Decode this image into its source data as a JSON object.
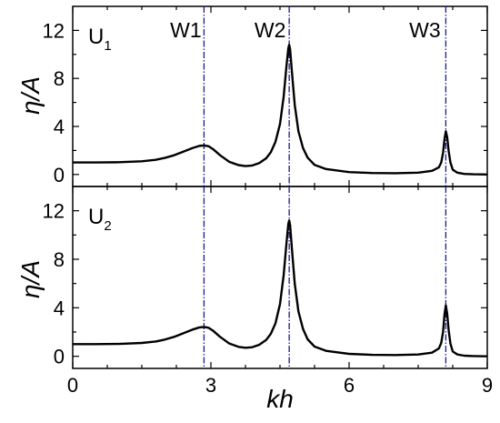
{
  "chart_data": {
    "type": "line",
    "xlabel": "kh",
    "ylabel": "η/A",
    "xlim": [
      0,
      9
    ],
    "ylim": [
      -1,
      14
    ],
    "x_ticks": [
      "0",
      "3",
      "6",
      "9"
    ],
    "y_ticks": [
      "0",
      "4",
      "8",
      "12"
    ],
    "vlines": [
      {
        "label": "W1",
        "x": 2.85
      },
      {
        "label": "W2",
        "x": 4.7
      },
      {
        "label": "W3",
        "x": 8.1
      }
    ],
    "line_color": "#000000",
    "vline_color": "#1a1a8c",
    "panels": [
      {
        "label": "U",
        "label_sub": "1",
        "series": [
          {
            "x": [
              0,
              0.5,
              1.0,
              1.5,
              1.8,
              2.0,
              2.2,
              2.4,
              2.6,
              2.75,
              2.85,
              2.95,
              3.05,
              3.2,
              3.4,
              3.6,
              3.75,
              3.9,
              4.05,
              4.2,
              4.3,
              4.4,
              4.5,
              4.58,
              4.64,
              4.68,
              4.7,
              4.72,
              4.76,
              4.82,
              4.9,
              5.0,
              5.1,
              5.25,
              5.5,
              6.0,
              6.5,
              7.0,
              7.5,
              7.8,
              7.95,
              8.0,
              8.04,
              8.07,
              8.1,
              8.13,
              8.16,
              8.2,
              8.25,
              8.35,
              8.5,
              8.7,
              9.0
            ],
            "y": [
              1.0,
              1.0,
              1.02,
              1.1,
              1.22,
              1.38,
              1.6,
              1.9,
              2.2,
              2.38,
              2.42,
              2.35,
              2.1,
              1.6,
              1.05,
              0.78,
              0.7,
              0.75,
              0.95,
              1.35,
              1.85,
              2.7,
              4.2,
              6.5,
              9.0,
              10.5,
              10.8,
              10.4,
              8.5,
              5.8,
              3.6,
              2.2,
              1.4,
              0.8,
              0.45,
              0.2,
              0.12,
              0.1,
              0.15,
              0.3,
              0.6,
              1.0,
              1.8,
              2.9,
              3.6,
              3.1,
              2.0,
              1.0,
              0.4,
              0.15,
              0.05,
              0.02,
              0.0
            ]
          }
        ]
      },
      {
        "label": "U",
        "label_sub": "2",
        "series": [
          {
            "x": [
              0,
              0.5,
              1.0,
              1.5,
              1.8,
              2.0,
              2.2,
              2.4,
              2.6,
              2.75,
              2.85,
              2.95,
              3.05,
              3.2,
              3.4,
              3.6,
              3.75,
              3.9,
              4.05,
              4.2,
              4.3,
              4.4,
              4.5,
              4.58,
              4.64,
              4.68,
              4.7,
              4.72,
              4.76,
              4.82,
              4.9,
              5.0,
              5.1,
              5.25,
              5.5,
              6.0,
              6.5,
              7.0,
              7.5,
              7.8,
              7.95,
              8.0,
              8.04,
              8.07,
              8.1,
              8.13,
              8.16,
              8.2,
              8.25,
              8.35,
              8.5,
              8.7,
              9.0
            ],
            "y": [
              1.0,
              1.0,
              1.02,
              1.1,
              1.22,
              1.38,
              1.6,
              1.9,
              2.2,
              2.38,
              2.42,
              2.35,
              2.1,
              1.6,
              1.05,
              0.78,
              0.7,
              0.75,
              0.95,
              1.35,
              1.85,
              2.7,
              4.3,
              6.7,
              9.3,
              10.9,
              11.2,
              10.8,
              8.8,
              6.0,
              3.7,
              2.25,
              1.4,
              0.8,
              0.45,
              0.2,
              0.12,
              0.1,
              0.15,
              0.3,
              0.65,
              1.1,
              2.0,
              3.4,
              4.2,
              3.5,
              2.2,
              1.05,
              0.4,
              0.15,
              0.05,
              0.02,
              0.0
            ]
          }
        ]
      }
    ]
  }
}
